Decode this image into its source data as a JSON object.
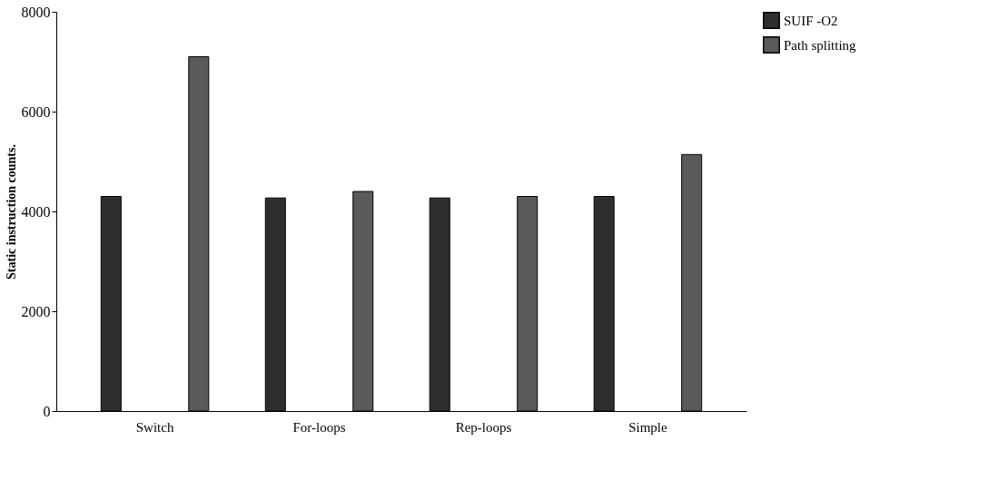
{
  "chart_data": {
    "type": "bar",
    "ylabel": "Static instruction counts.",
    "categories": [
      "Switch",
      "For-loops",
      "Rep-loops",
      "Simple"
    ],
    "series": [
      {
        "name": "SUIF -O2",
        "color": "#2e2e2e",
        "values": [
          4300,
          4270,
          4270,
          4300
        ]
      },
      {
        "name": "Path splitting",
        "color": "#5a5a5a",
        "values": [
          7100,
          4400,
          4300,
          5140
        ]
      }
    ],
    "ylim": [
      0,
      8000
    ],
    "yticks": [
      0,
      2000,
      4000,
      6000,
      8000
    ],
    "grid": false,
    "legend": "right"
  }
}
